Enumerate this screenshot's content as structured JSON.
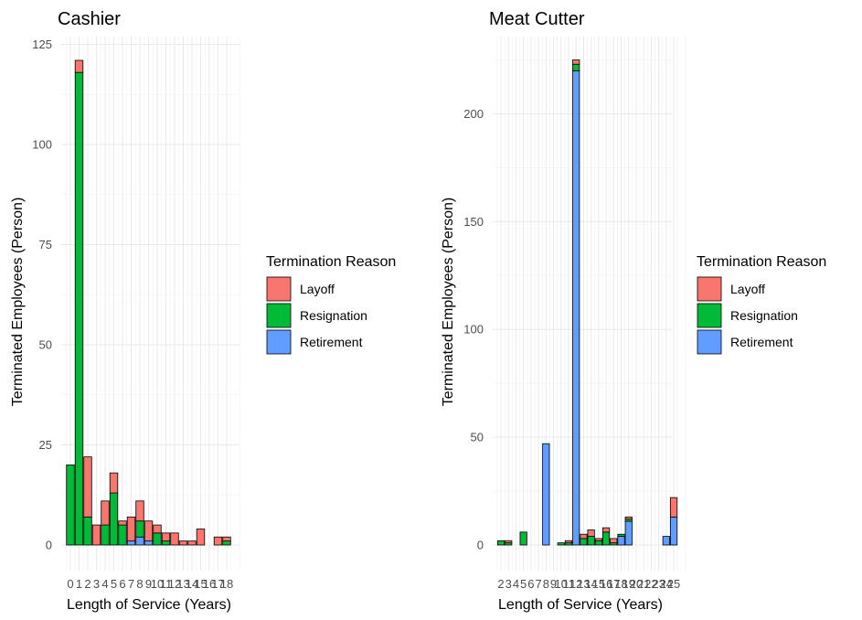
{
  "legend": {
    "title": "Termination Reason",
    "items": [
      {
        "label": "Layoff",
        "color": "#F8766D"
      },
      {
        "label": "Resignation",
        "color": "#00BA38"
      },
      {
        "label": "Retirement",
        "color": "#619CFF"
      }
    ]
  },
  "chart_data": [
    {
      "type": "bar",
      "stacked": true,
      "title": "Cashier",
      "xlabel": "Length of Service (Years)",
      "ylabel": "Terminated Employees (Person)",
      "ylim": [
        0,
        125
      ],
      "yticks": [
        0,
        25,
        50,
        75,
        100,
        125
      ],
      "categories": [
        "0",
        "1",
        "2",
        "3",
        "4",
        "5",
        "6",
        "7",
        "8",
        "9",
        "10",
        "11",
        "12",
        "13",
        "14",
        "15",
        "16",
        "17",
        "18"
      ],
      "series": [
        {
          "name": "Retirement",
          "values": [
            0,
            0,
            0,
            0,
            0,
            0,
            0,
            1,
            2,
            1,
            0,
            0,
            0,
            0,
            0,
            0,
            0,
            0,
            0
          ]
        },
        {
          "name": "Resignation",
          "values": [
            20,
            118,
            7,
            0,
            5,
            13,
            5,
            0,
            4,
            0,
            3,
            1,
            0,
            0,
            0,
            0,
            0,
            0,
            1
          ]
        },
        {
          "name": "Layoff",
          "values": [
            0,
            3,
            15,
            5,
            6,
            5,
            1,
            6,
            5,
            5,
            2,
            2,
            3,
            1,
            1,
            4,
            0,
            2,
            1
          ]
        }
      ],
      "legend": "right"
    },
    {
      "type": "bar",
      "stacked": true,
      "title": "Meat Cutter",
      "xlabel": "Length of Service (Years)",
      "ylabel": "Terminated Employees (Person)",
      "ylim": [
        0,
        225
      ],
      "yticks": [
        0,
        50,
        100,
        150,
        200
      ],
      "categories": [
        "2",
        "3",
        "4",
        "5",
        "6",
        "7",
        "8",
        "9",
        "10",
        "11",
        "12",
        "13",
        "14",
        "15",
        "16",
        "17",
        "18",
        "19",
        "20",
        "21",
        "22",
        "23",
        "24",
        "25"
      ],
      "series": [
        {
          "name": "Retirement",
          "values": [
            0,
            0,
            0,
            0,
            0,
            0,
            47,
            0,
            0,
            0,
            220,
            0,
            0,
            0,
            0,
            0,
            4,
            11,
            0,
            0,
            0,
            0,
            4,
            13
          ]
        },
        {
          "name": "Resignation",
          "values": [
            2,
            1,
            0,
            6,
            0,
            0,
            0,
            0,
            1,
            1,
            3,
            3,
            4,
            2,
            6,
            1,
            1,
            1,
            0,
            0,
            0,
            0,
            0,
            0
          ]
        },
        {
          "name": "Layoff",
          "values": [
            0,
            1,
            0,
            0,
            0,
            0,
            0,
            0,
            0,
            1,
            2,
            2,
            3,
            1,
            2,
            2,
            0,
            1,
            0,
            0,
            0,
            0,
            0,
            9
          ]
        }
      ],
      "legend": "right"
    }
  ]
}
